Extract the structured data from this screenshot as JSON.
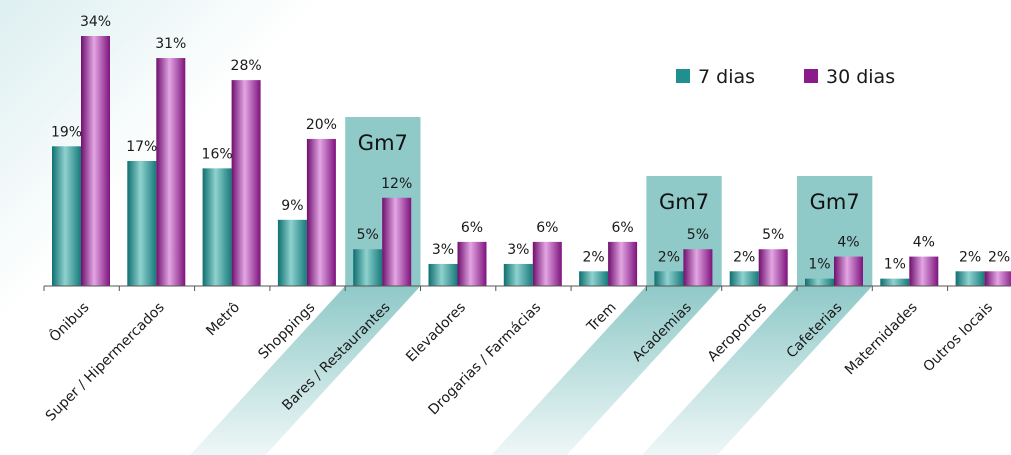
{
  "chart_data": {
    "type": "bar",
    "categories": [
      "Ônibus",
      "Super / Hipermercados",
      "Metrô",
      "Shoppings",
      "Bares / Restaurantes",
      "Elevadores",
      "Drogarias / Farmácias",
      "Trem",
      "Academias",
      "Aeroportos",
      "Cafeterias",
      "Maternidades",
      "Outros locais"
    ],
    "series": [
      {
        "name": "7 dias",
        "values": [
          19,
          17,
          16,
          9,
          5,
          3,
          3,
          2,
          2,
          2,
          1,
          1,
          2
        ],
        "labels": [
          "19%",
          "17%",
          "16%",
          "9%",
          "5%",
          "3%",
          "3%",
          "2%",
          "2%",
          "2%",
          "1%",
          "1%",
          "2%"
        ],
        "color": "#1f8f8f"
      },
      {
        "name": "30 dias",
        "values": [
          34,
          31,
          28,
          20,
          12,
          6,
          6,
          6,
          5,
          5,
          4,
          4,
          2
        ],
        "labels": [
          "34%",
          "31%",
          "28%",
          "20%",
          "12%",
          "6%",
          "6%",
          "6%",
          "5%",
          "5%",
          "4%",
          "4%",
          "2%"
        ],
        "color": "#8b1a8b"
      }
    ],
    "ylim": [
      0,
      34
    ],
    "highlights": [
      {
        "category": "Bares / Restaurantes",
        "label": "Gm7"
      },
      {
        "category": "Academias",
        "label": "Gm7"
      },
      {
        "category": "Cafeterias",
        "label": "Gm7"
      }
    ],
    "highlight_color": "#8fc9c8",
    "legend_position": "top-right",
    "grid": false
  }
}
